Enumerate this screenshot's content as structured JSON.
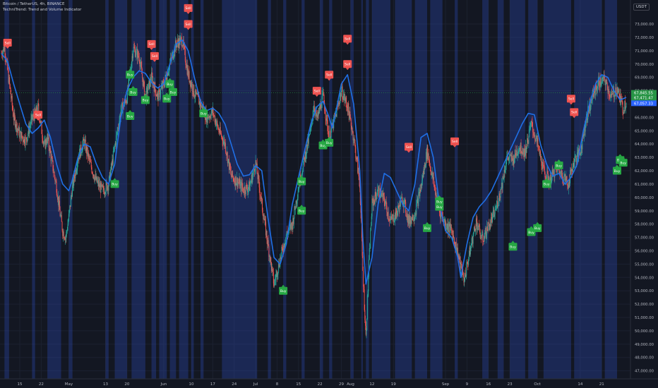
{
  "header": {
    "title": "Bitcoin / TetherUS, 4h, BINANCE",
    "indicator": "TechniTrend: Trend and Volume Indicator"
  },
  "currency_badge": "USDT",
  "colors": {
    "background": "#131722",
    "up_candle": "#26a69a",
    "down_candle": "#ef5350",
    "trend_line": "#1f6fe6",
    "volume_band": "#2f4fbf",
    "buy_label": "#27a844",
    "sell_label": "#ef5350",
    "last_price_bg": "#2962ff",
    "ma_badge_bg": "#279445",
    "grid": "#1c2130",
    "axis_text": "#b2b5be"
  },
  "chart_data": {
    "type": "candlestick",
    "title": "Bitcoin / TetherUS, 4h, BINANCE",
    "ylim": [
      46400,
      74800
    ],
    "y_ticks": [
      47000,
      48000,
      49000,
      50000,
      51000,
      52000,
      53000,
      54000,
      55000,
      56000,
      57000,
      58000,
      59000,
      60000,
      61000,
      62000,
      63000,
      64000,
      65000,
      66000,
      67000,
      68000,
      69000,
      70000,
      71000,
      72000,
      73000
    ],
    "y_tick_labels": [
      "47,000.00",
      "48,000.00",
      "49,000.00",
      "50,000.00",
      "51,000.00",
      "52,000.00",
      "53,000.00",
      "54,000.00",
      "55,000.00",
      "56,000.00",
      "57,000.00",
      "58,000.00",
      "59,000.00",
      "60,000.00",
      "61,000.00",
      "62,000.00",
      "63,000.00",
      "64,000.00",
      "65,000.00",
      "66,000.00",
      "67,000.00",
      "68,000.00",
      "69,000.00",
      "70,000.00",
      "71,000.00",
      "72,000.00",
      "73,000.00"
    ],
    "x_ticks": [
      {
        "day": 15,
        "label": "15"
      },
      {
        "day": 22,
        "label": "22"
      },
      {
        "day": 31,
        "label": "May"
      },
      {
        "day": 43,
        "label": "13"
      },
      {
        "day": 50,
        "label": "20"
      },
      {
        "day": 62,
        "label": "Jun"
      },
      {
        "day": 71,
        "label": "10"
      },
      {
        "day": 78,
        "label": "17"
      },
      {
        "day": 85,
        "label": "24"
      },
      {
        "day": 92,
        "label": "Jul"
      },
      {
        "day": 99,
        "label": "8"
      },
      {
        "day": 106,
        "label": "15"
      },
      {
        "day": 113,
        "label": "22"
      },
      {
        "day": 120,
        "label": "29"
      },
      {
        "day": 123,
        "label": "Aug"
      },
      {
        "day": 130,
        "label": "12"
      },
      {
        "day": 137,
        "label": "19"
      },
      {
        "day": 154,
        "label": "Sep"
      },
      {
        "day": 161,
        "label": "9"
      },
      {
        "day": 168,
        "label": "16"
      },
      {
        "day": 175,
        "label": "23"
      },
      {
        "day": 184,
        "label": "Oct"
      },
      {
        "day": 198,
        "label": "14"
      },
      {
        "day": 205,
        "label": "21"
      }
    ],
    "x_range_days": [
      9,
      213
    ],
    "trend_line": [
      [
        9,
        70800
      ],
      [
        11,
        70200
      ],
      [
        13,
        68500
      ],
      [
        15,
        67000
      ],
      [
        17,
        65500
      ],
      [
        19,
        64800
      ],
      [
        21,
        65200
      ],
      [
        23,
        65800
      ],
      [
        25,
        64500
      ],
      [
        27,
        62500
      ],
      [
        29,
        61000
      ],
      [
        31,
        60500
      ],
      [
        32,
        61200
      ],
      [
        34,
        63000
      ],
      [
        36,
        64000
      ],
      [
        38,
        63800
      ],
      [
        40,
        62500
      ],
      [
        42,
        61500
      ],
      [
        44,
        61000
      ],
      [
        46,
        62500
      ],
      [
        48,
        66000
      ],
      [
        50,
        68000
      ],
      [
        52,
        69000
      ],
      [
        54,
        69500
      ],
      [
        56,
        69300
      ],
      [
        58,
        68600
      ],
      [
        60,
        68200
      ],
      [
        62,
        68500
      ],
      [
        64,
        70000
      ],
      [
        66,
        71500
      ],
      [
        68,
        71800
      ],
      [
        70,
        71000
      ],
      [
        72,
        69000
      ],
      [
        74,
        67200
      ],
      [
        76,
        66500
      ],
      [
        78,
        66700
      ],
      [
        80,
        66300
      ],
      [
        82,
        65500
      ],
      [
        84,
        64000
      ],
      [
        86,
        62500
      ],
      [
        88,
        61600
      ],
      [
        90,
        61700
      ],
      [
        92,
        62400
      ],
      [
        94,
        62000
      ],
      [
        96,
        58500
      ],
      [
        98,
        55500
      ],
      [
        100,
        55000
      ],
      [
        102,
        56500
      ],
      [
        104,
        59500
      ],
      [
        106,
        61500
      ],
      [
        108,
        63500
      ],
      [
        110,
        65500
      ],
      [
        112,
        66800
      ],
      [
        114,
        67200
      ],
      [
        116,
        66000
      ],
      [
        117,
        65200
      ],
      [
        118,
        66200
      ],
      [
        120,
        68500
      ],
      [
        122,
        69200
      ],
      [
        124,
        67000
      ],
      [
        126,
        62000
      ],
      [
        127,
        57000
      ],
      [
        128,
        53500
      ],
      [
        130,
        55500
      ],
      [
        132,
        59500
      ],
      [
        134,
        61800
      ],
      [
        136,
        61500
      ],
      [
        138,
        60500
      ],
      [
        140,
        59500
      ],
      [
        142,
        59000
      ],
      [
        144,
        61000
      ],
      [
        146,
        64500
      ],
      [
        148,
        64800
      ],
      [
        150,
        63000
      ],
      [
        152,
        59500
      ],
      [
        154,
        57500
      ],
      [
        156,
        57000
      ],
      [
        158,
        55500
      ],
      [
        159,
        54000
      ],
      [
        161,
        56500
      ],
      [
        163,
        58500
      ],
      [
        165,
        59300
      ],
      [
        167,
        59800
      ],
      [
        169,
        60500
      ],
      [
        171,
        61500
      ],
      [
        173,
        62500
      ],
      [
        175,
        63500
      ],
      [
        177,
        64500
      ],
      [
        179,
        65500
      ],
      [
        181,
        66300
      ],
      [
        183,
        66200
      ],
      [
        185,
        64000
      ],
      [
        187,
        62500
      ],
      [
        189,
        61600
      ],
      [
        191,
        61800
      ],
      [
        193,
        61000
      ],
      [
        195,
        61500
      ],
      [
        197,
        62500
      ],
      [
        199,
        65000
      ],
      [
        201,
        67000
      ],
      [
        203,
        68500
      ],
      [
        205,
        69200
      ],
      [
        207,
        69000
      ],
      [
        209,
        68000
      ],
      [
        211,
        67300
      ],
      [
        213,
        67500
      ]
    ],
    "price_anchors": [
      [
        9,
        70800
      ],
      [
        10,
        71300
      ],
      [
        12,
        67800
      ],
      [
        13,
        66000
      ],
      [
        15,
        64700
      ],
      [
        17,
        64300
      ],
      [
        19,
        65900
      ],
      [
        21,
        66700
      ],
      [
        23,
        63800
      ],
      [
        24,
        64500
      ],
      [
        26,
        62000
      ],
      [
        27,
        60800
      ],
      [
        28,
        59000
      ],
      [
        29,
        57500
      ],
      [
        30,
        57000
      ],
      [
        31,
        58500
      ],
      [
        32,
        60500
      ],
      [
        34,
        63000
      ],
      [
        36,
        64200
      ],
      [
        38,
        62500
      ],
      [
        40,
        61200
      ],
      [
        42,
        60500
      ],
      [
        44,
        61000
      ],
      [
        46,
        63800
      ],
      [
        48,
        66500
      ],
      [
        50,
        67500
      ],
      [
        52,
        71200
      ],
      [
        54,
        70500
      ],
      [
        56,
        67500
      ],
      [
        58,
        69000
      ],
      [
        60,
        67500
      ],
      [
        62,
        68500
      ],
      [
        64,
        70000
      ],
      [
        66,
        71500
      ],
      [
        68,
        71800
      ],
      [
        70,
        69200
      ],
      [
        72,
        67800
      ],
      [
        74,
        67000
      ],
      [
        76,
        66000
      ],
      [
        78,
        66400
      ],
      [
        80,
        65000
      ],
      [
        82,
        64000
      ],
      [
        84,
        61600
      ],
      [
        86,
        61200
      ],
      [
        88,
        60600
      ],
      [
        90,
        60800
      ],
      [
        92,
        62600
      ],
      [
        94,
        59500
      ],
      [
        96,
        56500
      ],
      [
        98,
        53500
      ],
      [
        100,
        55400
      ],
      [
        102,
        57200
      ],
      [
        104,
        58000
      ],
      [
        106,
        60800
      ],
      [
        108,
        63000
      ],
      [
        110,
        65000
      ],
      [
        111,
        67000
      ],
      [
        112,
        65800
      ],
      [
        114,
        67600
      ],
      [
        116,
        64500
      ],
      [
        118,
        66000
      ],
      [
        120,
        68000
      ],
      [
        122,
        66800
      ],
      [
        124,
        64500
      ],
      [
        126,
        61000
      ],
      [
        127,
        54500
      ],
      [
        128,
        49500
      ],
      [
        129,
        55000
      ],
      [
        130,
        59500
      ],
      [
        132,
        60500
      ],
      [
        134,
        59800
      ],
      [
        136,
        58200
      ],
      [
        138,
        58800
      ],
      [
        140,
        60000
      ],
      [
        142,
        58200
      ],
      [
        144,
        58800
      ],
      [
        146,
        60800
      ],
      [
        148,
        63500
      ],
      [
        150,
        61200
      ],
      [
        152,
        59000
      ],
      [
        154,
        58000
      ],
      [
        156,
        57500
      ],
      [
        158,
        55800
      ],
      [
        160,
        53800
      ],
      [
        162,
        56000
      ],
      [
        164,
        58200
      ],
      [
        166,
        56800
      ],
      [
        168,
        57800
      ],
      [
        170,
        58800
      ],
      [
        172,
        60500
      ],
      [
        174,
        63000
      ],
      [
        176,
        62800
      ],
      [
        178,
        63800
      ],
      [
        180,
        63400
      ],
      [
        182,
        65500
      ],
      [
        184,
        64000
      ],
      [
        186,
        62000
      ],
      [
        188,
        61200
      ],
      [
        190,
        62200
      ],
      [
        192,
        61800
      ],
      [
        194,
        61000
      ],
      [
        196,
        62800
      ],
      [
        198,
        63400
      ],
      [
        200,
        66000
      ],
      [
        202,
        67600
      ],
      [
        204,
        68600
      ],
      [
        206,
        68800
      ],
      [
        208,
        67500
      ],
      [
        210,
        68200
      ],
      [
        212,
        66600
      ],
      [
        213,
        67300
      ]
    ],
    "signals": [
      {
        "day": 11,
        "type": "sell",
        "text": "Sell",
        "price": 71600
      },
      {
        "day": 21,
        "type": "sell",
        "text": "Sell",
        "price": 66200
      },
      {
        "day": 51,
        "type": "buy",
        "text": "Buy",
        "price": 69200
      },
      {
        "day": 52,
        "type": "buy",
        "text": "Buy",
        "price": 67900
      },
      {
        "day": 51,
        "type": "buy",
        "text": "Buy",
        "price": 66100
      },
      {
        "day": 56,
        "type": "buy",
        "text": "Buy",
        "price": 67300
      },
      {
        "day": 58,
        "type": "sell",
        "text": "Sell",
        "price": 71500
      },
      {
        "day": 59,
        "type": "sell",
        "text": "Sell",
        "price": 70600
      },
      {
        "day": 64,
        "type": "buy",
        "text": "Buy",
        "price": 68500
      },
      {
        "day": 63,
        "type": "buy",
        "text": "Buy",
        "price": 67400
      },
      {
        "day": 65,
        "type": "buy",
        "text": "Buy",
        "price": 67900
      },
      {
        "day": 70,
        "type": "sell",
        "text": "Sell",
        "price": 74200
      },
      {
        "day": 70,
        "type": "sell",
        "text": "Sell",
        "price": 73000
      },
      {
        "day": 75,
        "type": "buy",
        "text": "Buy",
        "price": 66300
      },
      {
        "day": 46,
        "type": "buy",
        "text": "Buy",
        "price": 61000
      },
      {
        "day": 112,
        "type": "sell",
        "text": "Sell",
        "price": 68000
      },
      {
        "day": 116,
        "type": "sell",
        "text": "Sell",
        "price": 69200
      },
      {
        "day": 122,
        "type": "sell",
        "text": "Sell",
        "price": 71900
      },
      {
        "day": 122,
        "type": "sell",
        "text": "Sell",
        "price": 70000
      },
      {
        "day": 114,
        "type": "buy",
        "text": "Buy",
        "price": 63900
      },
      {
        "day": 116,
        "type": "buy",
        "text": "Buy",
        "price": 64100
      },
      {
        "day": 107,
        "type": "buy",
        "text": "Buy",
        "price": 61200
      },
      {
        "day": 107,
        "type": "buy",
        "text": "Buy",
        "price": 59000
      },
      {
        "day": 101,
        "type": "buy",
        "text": "Buy",
        "price": 53000
      },
      {
        "day": 142,
        "type": "sell",
        "text": "Sell",
        "price": 63800
      },
      {
        "day": 157,
        "type": "sell",
        "text": "Sell",
        "price": 64200
      },
      {
        "day": 152,
        "type": "buy",
        "text": "Buy",
        "price": 59300
      },
      {
        "day": 152,
        "type": "buy",
        "text": "Buy",
        "price": 59700
      },
      {
        "day": 148,
        "type": "buy",
        "text": "Buy",
        "price": 57700
      },
      {
        "day": 176,
        "type": "buy",
        "text": "Buy",
        "price": 56300
      },
      {
        "day": 182,
        "type": "buy",
        "text": "Buy",
        "price": 57400
      },
      {
        "day": 184,
        "type": "buy",
        "text": "Buy",
        "price": 57700
      },
      {
        "day": 187,
        "type": "buy",
        "text": "Buy",
        "price": 61000
      },
      {
        "day": 191,
        "type": "buy",
        "text": "Buy",
        "price": 62400
      },
      {
        "day": 195,
        "type": "sell",
        "text": "Sell",
        "price": 67400
      },
      {
        "day": 196,
        "type": "sell",
        "text": "Sell",
        "price": 66400
      },
      {
        "day": 210,
        "type": "buy",
        "text": "Buy",
        "price": 62000
      },
      {
        "day": 211,
        "type": "buy",
        "text": "Buy",
        "price": 62800
      },
      {
        "day": 212,
        "type": "buy",
        "text": "Buy",
        "price": 62600
      }
    ],
    "volume_bands_days": [
      10,
      11.5,
      19,
      20,
      24,
      28.5,
      31,
      32.2,
      43,
      44,
      46,
      50,
      51.5,
      56,
      58,
      59.5,
      60.5,
      63,
      64,
      66,
      67,
      70,
      71,
      71.8,
      74,
      75,
      81,
      92.5,
      96,
      97,
      101,
      102,
      107,
      108,
      113,
      114,
      116,
      117,
      123,
      124,
      126.5,
      127,
      128,
      129,
      130,
      136,
      137.5,
      143,
      144,
      148,
      149,
      153,
      157,
      158,
      166,
      168,
      171,
      173,
      175,
      180,
      181,
      184,
      186,
      195,
      196,
      205,
      206,
      210,
      212
    ],
    "price_badges": [
      {
        "text": "67,845.55",
        "price": 67840,
        "kind": "ma1"
      },
      {
        "text": "67,471.47",
        "price": 67470,
        "kind": "ma2"
      },
      {
        "text": "67,057.33",
        "price": 67060,
        "kind": "last"
      }
    ]
  }
}
